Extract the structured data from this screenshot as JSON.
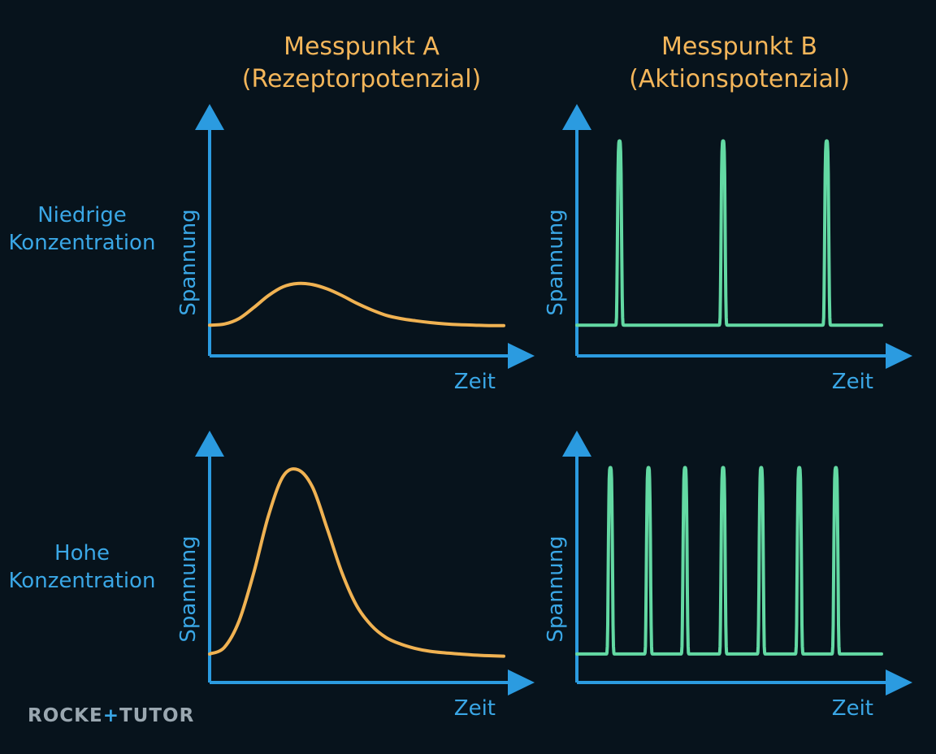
{
  "columns": [
    {
      "title_line1": "Messpunkt A",
      "title_line2": "(Rezeptorpotenzial)"
    },
    {
      "title_line1": "Messpunkt B",
      "title_line2": "(Aktionspotenzial)"
    }
  ],
  "rows": [
    {
      "label_line1": "Niedrige",
      "label_line2": "Konzentration"
    },
    {
      "label_line1": "Hohe",
      "label_line2": "Konzentration"
    }
  ],
  "logo": "ROCKETUTOR",
  "colors": {
    "background": "#07131c",
    "axis": "#2b9be0",
    "receptor_curve": "#f0b252",
    "action_curve": "#63d9a3",
    "title": "#f4b65a",
    "label": "#3aa7e6"
  },
  "chart_data": [
    {
      "type": "line",
      "panel": "A-niedrig",
      "xlabel": "Zeit",
      "ylabel": "Spannung",
      "xlim": [
        0,
        10
      ],
      "ylim": [
        0,
        10
      ],
      "series": [
        {
          "x": [
            0,
            0.5,
            1,
            1.5,
            2,
            2.5,
            3,
            3.5,
            4,
            4.5,
            5,
            5.5,
            6,
            6.5,
            7,
            7.5,
            8,
            8.5,
            9,
            9.5,
            10
          ],
          "y": [
            1.4,
            1.45,
            1.7,
            2.2,
            2.75,
            3.15,
            3.3,
            3.25,
            3.05,
            2.75,
            2.4,
            2.1,
            1.85,
            1.7,
            1.6,
            1.52,
            1.46,
            1.42,
            1.4,
            1.38,
            1.38
          ]
        }
      ]
    },
    {
      "type": "line",
      "panel": "B-niedrig",
      "xlabel": "Zeit",
      "ylabel": "Spannung",
      "xlim": [
        0,
        10
      ],
      "ylim": [
        0,
        10
      ],
      "series": [
        {
          "spike_times": [
            1.4,
            4.8,
            8.2
          ],
          "baseline": 1.4,
          "peak": 9.8
        }
      ]
    },
    {
      "type": "line",
      "panel": "A-hoch",
      "xlabel": "Zeit",
      "ylabel": "Spannung",
      "xlim": [
        0,
        10
      ],
      "ylim": [
        0,
        10
      ],
      "series": [
        {
          "x": [
            0,
            0.5,
            1,
            1.5,
            2,
            2.5,
            3,
            3.5,
            4,
            4.5,
            5,
            5.5,
            6,
            6.5,
            7,
            7.5,
            8,
            8.5,
            9,
            9.5,
            10
          ],
          "y": [
            1.3,
            1.6,
            2.8,
            5.0,
            7.6,
            9.4,
            9.7,
            8.9,
            7.0,
            5.0,
            3.5,
            2.6,
            2.05,
            1.75,
            1.55,
            1.42,
            1.35,
            1.3,
            1.25,
            1.22,
            1.2
          ]
        }
      ]
    },
    {
      "type": "line",
      "panel": "B-hoch",
      "xlabel": "Zeit",
      "ylabel": "Spannung",
      "xlim": [
        0,
        10
      ],
      "ylim": [
        0,
        10
      ],
      "series": [
        {
          "spike_times": [
            1.1,
            2.35,
            3.55,
            4.8,
            6.05,
            7.3,
            8.5
          ],
          "baseline": 1.3,
          "peak": 9.8
        }
      ]
    }
  ]
}
